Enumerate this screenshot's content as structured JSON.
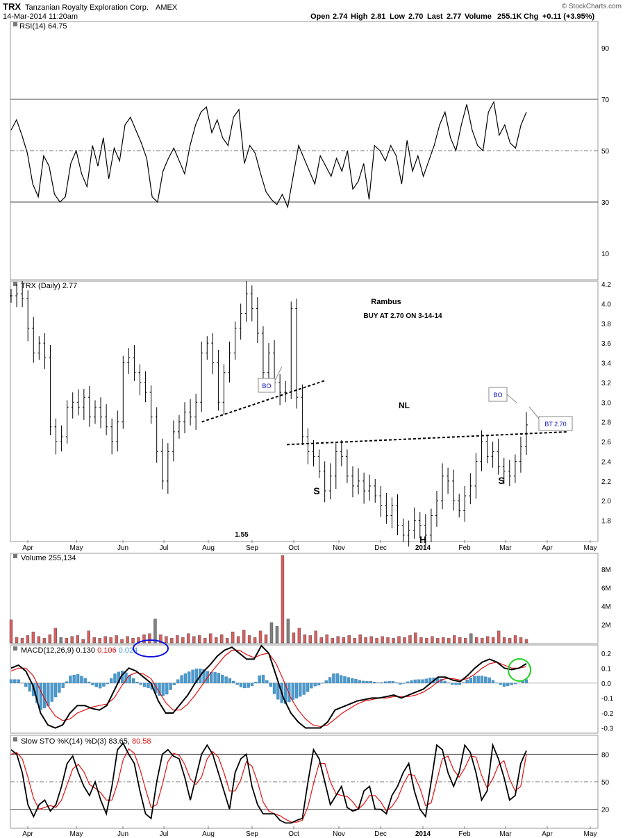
{
  "header": {
    "symbol": "TRX",
    "company": "Tanzanian Royalty Exploration Corp.",
    "exchange": "AMEX",
    "datetime": "14-Mar-2014 11:20am",
    "quote": {
      "open_label": "Open",
      "open": "2.74",
      "high_label": "High",
      "high": "2.81",
      "low_label": "Low",
      "low": "2.70",
      "last_label": "Last",
      "last": "2.77",
      "volume_label": "Volume",
      "volume": "255.1K",
      "chg_label": "Chg",
      "chg": "+0.11 (+3.95%)"
    },
    "watermark": "© StockCharts.com"
  },
  "colors": {
    "line": "#000000",
    "signal": "#e01010",
    "up": "#000000",
    "vol_down": "#d86060",
    "vol_up": "#808080",
    "hist": "#4a9ad0",
    "circle_blue": "#1010e0",
    "circle_green": "#20d020",
    "box": "#ffffff"
  },
  "chart_data": [
    {
      "panel": "rsi",
      "type": "line",
      "label": "RSI(14) 64.75",
      "ylim": [
        0,
        100
      ],
      "yticks": [
        90,
        70,
        50,
        30,
        10
      ],
      "levels": [
        70,
        50,
        30
      ],
      "series": [
        {
          "values": [
            58,
            62,
            56,
            49,
            37,
            32,
            48,
            44,
            33,
            30,
            32,
            45,
            50,
            41,
            36,
            52,
            44,
            55,
            39,
            51,
            46,
            60,
            63,
            58,
            53,
            47,
            32,
            30,
            42,
            47,
            51,
            46,
            41,
            52,
            60,
            65,
            67,
            57,
            62,
            55,
            52,
            63,
            66,
            45,
            52,
            49,
            41,
            34,
            31,
            29,
            33,
            28,
            40,
            52,
            47,
            42,
            37,
            48,
            44,
            40,
            47,
            42,
            50,
            35,
            38,
            45,
            31,
            52,
            50,
            46,
            52,
            48,
            37,
            54,
            42,
            48,
            40,
            46,
            52,
            60,
            65,
            55,
            50,
            60,
            68,
            58,
            52,
            50,
            65,
            69,
            56,
            60,
            53,
            51,
            60,
            65
          ]
        }
      ]
    },
    {
      "panel": "price",
      "type": "ohlc",
      "label": "TRX (Daily) 2.77",
      "ylim": [
        1.6,
        4.2
      ],
      "yticks": [
        4.2,
        4.0,
        3.8,
        3.6,
        3.4,
        3.2,
        3.0,
        2.8,
        2.6,
        2.4,
        2.2,
        2.0,
        1.8
      ],
      "xticks": [
        "Apr",
        "May",
        "Jun",
        "Jul",
        "Aug",
        "Sep",
        "Oct",
        "Nov",
        "Dec",
        "2014",
        "Feb",
        "Mar",
        "Apr",
        "May"
      ],
      "closes": [
        4.08,
        4.1,
        4.05,
        3.75,
        3.5,
        3.6,
        3.45,
        2.75,
        2.6,
        2.65,
        2.95,
        3.0,
        2.95,
        3.05,
        2.85,
        2.95,
        2.85,
        2.75,
        2.6,
        2.8,
        3.4,
        3.45,
        3.3,
        3.2,
        3.1,
        2.85,
        2.5,
        2.2,
        2.5,
        2.7,
        2.8,
        2.9,
        2.85,
        3.0,
        3.5,
        3.6,
        3.4,
        3.0,
        3.3,
        3.5,
        3.75,
        3.9,
        4.1,
        3.95,
        3.7,
        3.3,
        3.5,
        3.2,
        3.1,
        3.1,
        3.95,
        3.05,
        2.65,
        2.5,
        2.45,
        2.3,
        2.1,
        2.25,
        2.5,
        2.45,
        2.25,
        2.15,
        2.2,
        2.1,
        2.15,
        2.05,
        1.95,
        1.85,
        1.95,
        1.75,
        1.65,
        1.7,
        1.8,
        1.75,
        1.65,
        1.85,
        2.0,
        2.25,
        2.2,
        2.0,
        1.9,
        2.05,
        2.15,
        2.4,
        2.6,
        2.45,
        2.5,
        2.35,
        2.3,
        2.25,
        2.4,
        2.55,
        2.77
      ],
      "annotations": [
        {
          "text": "Rambus"
        },
        {
          "text": "BUY AT 2.70 ON 3-14-14"
        },
        {
          "text": "BO"
        },
        {
          "text": "BO"
        },
        {
          "text": "NL"
        },
        {
          "text": "BT 2.70"
        },
        {
          "text": "S"
        },
        {
          "text": "H"
        },
        {
          "text": "S"
        },
        {
          "text": "1.55"
        }
      ],
      "trendlines": [
        {
          "name": "early-neckline",
          "from": [
            0.325,
            2.8
          ],
          "to": [
            0.535,
            3.22
          ]
        },
        {
          "name": "nl-neckline",
          "from": [
            0.47,
            2.57
          ],
          "to": [
            0.95,
            2.7
          ]
        }
      ]
    },
    {
      "panel": "volume",
      "type": "bar",
      "label": "Volume 255,134",
      "ylim": [
        0,
        9500000
      ],
      "yticks": [
        "8M",
        "6M",
        "4M",
        "2M"
      ],
      "yticks_values": [
        8000000,
        6000000,
        4000000,
        2000000
      ],
      "values": [
        2.5,
        0.6,
        0.5,
        0.8,
        1.2,
        0.7,
        0.5,
        0.9,
        1.6,
        0.6,
        0.5,
        0.7,
        0.8,
        0.4,
        1.3,
        0.6,
        0.5,
        0.7,
        0.6,
        0.8,
        0.4,
        0.7,
        0.5,
        0.6,
        0.9,
        1.0,
        2.6,
        0.9,
        0.7,
        0.5,
        0.8,
        0.6,
        1.0,
        0.7,
        0.8,
        0.5,
        1.0,
        0.6,
        0.9,
        0.5,
        1.2,
        0.7,
        1.4,
        0.8,
        0.6,
        1.3,
        0.9,
        2.2,
        1.8,
        9.5,
        2.6,
        1.1,
        1.6,
        0.9,
        0.8,
        1.3,
        0.6,
        0.9,
        0.5,
        0.7,
        0.6,
        0.8,
        0.5,
        0.9,
        0.6,
        0.7,
        0.5,
        0.7,
        0.6,
        0.5,
        0.7,
        0.6,
        0.8,
        1.1,
        0.6,
        0.5,
        0.7,
        0.5,
        0.6,
        0.5,
        0.8,
        0.6,
        0.5,
        1.0,
        0.6,
        0.5,
        0.7,
        0.6,
        1.3,
        0.6,
        0.5,
        0.8,
        0.6,
        0.4
      ],
      "ups": [
        9,
        26,
        47,
        48,
        50,
        83
      ]
    },
    {
      "panel": "macd",
      "type": "line",
      "label_prefix": "MACD(12,26,9)",
      "label_macd": "0.130",
      "label_signal": "0.106",
      "label_hist": "0.024",
      "ylim": [
        -0.33,
        0.25
      ],
      "yticks": [
        0.2,
        0.1,
        0.0,
        -0.1,
        -0.2,
        -0.3
      ],
      "series": [
        {
          "values": [
            0.1,
            0.12,
            0.08,
            -0.02,
            -0.2,
            -0.28,
            -0.3,
            -0.28,
            -0.2,
            -0.15,
            -0.15,
            -0.17,
            -0.18,
            -0.15,
            -0.05,
            0.05,
            0.1,
            0.08,
            0.04,
            0.0,
            -0.12,
            -0.2,
            -0.2,
            -0.14,
            -0.08,
            0.0,
            0.07,
            0.12,
            0.18,
            0.22,
            0.24,
            0.2,
            0.16,
            0.16,
            0.25,
            0.2,
            0.05,
            -0.1,
            -0.2,
            -0.26,
            -0.3,
            -0.3,
            -0.3,
            -0.26,
            -0.18,
            -0.16,
            -0.14,
            -0.12,
            -0.11,
            -0.1,
            -0.1,
            -0.09,
            -0.08,
            -0.1,
            -0.08,
            -0.06,
            -0.04,
            0.0,
            0.04,
            0.04,
            0.02,
            0.01,
            0.05,
            0.1,
            0.14,
            0.16,
            0.14,
            0.1,
            0.09,
            0.1,
            0.13
          ]
        },
        {
          "values": [
            0.08,
            0.1,
            0.1,
            0.05,
            -0.05,
            -0.15,
            -0.22,
            -0.25,
            -0.24,
            -0.2,
            -0.18,
            -0.16,
            -0.15,
            -0.14,
            -0.1,
            -0.02,
            0.05,
            0.07,
            0.06,
            0.03,
            -0.05,
            -0.13,
            -0.18,
            -0.18,
            -0.14,
            -0.08,
            -0.01,
            0.06,
            0.12,
            0.18,
            0.22,
            0.22,
            0.19,
            0.17,
            0.19,
            0.2,
            0.13,
            0.02,
            -0.1,
            -0.18,
            -0.24,
            -0.28,
            -0.29,
            -0.28,
            -0.24,
            -0.2,
            -0.17,
            -0.14,
            -0.12,
            -0.11,
            -0.1,
            -0.1,
            -0.09,
            -0.09,
            -0.09,
            -0.08,
            -0.06,
            -0.03,
            0.01,
            0.03,
            0.03,
            0.02,
            0.03,
            0.06,
            0.1,
            0.13,
            0.14,
            0.12,
            0.1,
            0.1,
            0.11
          ]
        }
      ]
    },
    {
      "panel": "sto",
      "type": "line",
      "label_prefix": "Slow STO %K(14) %D(3)",
      "label_k": "83.65",
      "label_d": "80.58",
      "ylim": [
        0,
        100
      ],
      "yticks": [
        80,
        50,
        20
      ],
      "levels": [
        80,
        50,
        20
      ],
      "series": [
        {
          "values": [
            85,
            80,
            60,
            25,
            12,
            25,
            30,
            18,
            25,
            45,
            70,
            78,
            60,
            45,
            35,
            50,
            30,
            15,
            45,
            85,
            92,
            80,
            70,
            40,
            15,
            10,
            50,
            80,
            85,
            78,
            75,
            55,
            30,
            55,
            80,
            90,
            80,
            60,
            40,
            20,
            60,
            75,
            80,
            45,
            25,
            15,
            15,
            15,
            8,
            5,
            5,
            8,
            10,
            50,
            85,
            75,
            50,
            25,
            35,
            45,
            22,
            18,
            20,
            40,
            45,
            20,
            20,
            15,
            35,
            45,
            60,
            70,
            40,
            20,
            12,
            50,
            90,
            85,
            60,
            45,
            60,
            90,
            82,
            60,
            30,
            40,
            90,
            75,
            55,
            30,
            35,
            70,
            84
          ]
        },
        {
          "values": [
            80,
            82,
            75,
            55,
            32,
            20,
            22,
            24,
            22,
            30,
            47,
            64,
            69,
            61,
            47,
            43,
            38,
            30,
            30,
            48,
            74,
            86,
            81,
            64,
            42,
            22,
            25,
            47,
            72,
            81,
            79,
            69,
            53,
            47,
            55,
            75,
            83,
            77,
            60,
            40,
            40,
            52,
            72,
            67,
            50,
            28,
            18,
            15,
            13,
            9,
            6,
            6,
            8,
            23,
            48,
            70,
            70,
            50,
            37,
            35,
            34,
            28,
            20,
            26,
            35,
            35,
            28,
            18,
            23,
            32,
            47,
            58,
            57,
            43,
            24,
            27,
            51,
            75,
            78,
            63,
            55,
            65,
            78,
            77,
            57,
            43,
            53,
            68,
            73,
            53,
            40,
            45,
            80
          ]
        }
      ],
      "xticks": [
        "Apr",
        "May",
        "Jun",
        "Jul",
        "Aug",
        "Sep",
        "Oct",
        "Nov",
        "Dec",
        "2014",
        "Feb",
        "Mar",
        "Apr",
        "May"
      ]
    }
  ]
}
